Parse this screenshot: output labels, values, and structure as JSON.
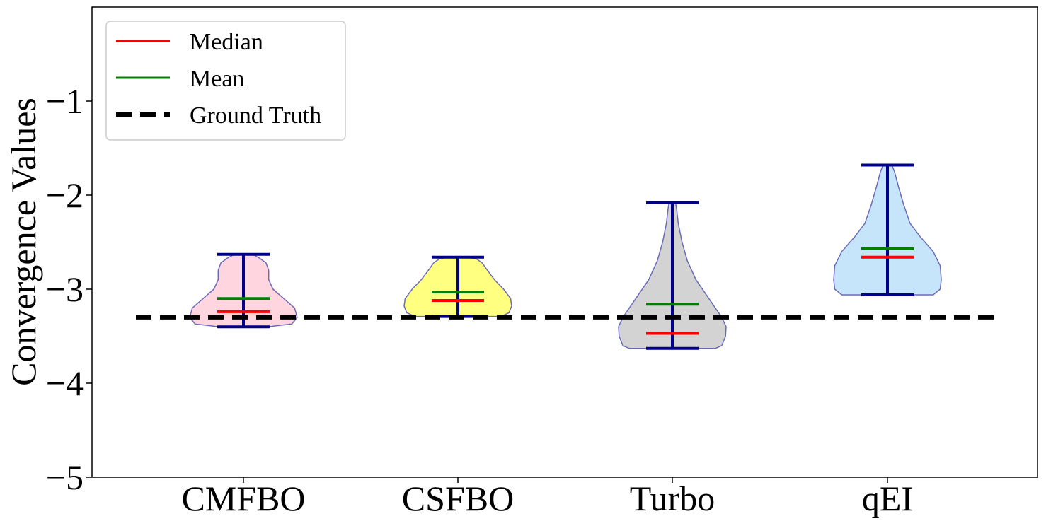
{
  "chart_data": {
    "type": "violin",
    "title": "",
    "xlabel": "",
    "ylabel": "Convergence Values",
    "ylim": [
      -5,
      0
    ],
    "yticks": [
      -1,
      -2,
      -3,
      -4,
      -5
    ],
    "ytick_labels": [
      "−1",
      "−2",
      "−3",
      "−4",
      "−5"
    ],
    "categories": [
      "CMFBO",
      "CSFBO",
      "Turbo",
      "qEI"
    ],
    "grid": false,
    "legend_position": "top-left",
    "ground_truth": -3.3,
    "series": [
      {
        "category": "CMFBO",
        "min": -3.4,
        "max": -2.63,
        "median": -3.24,
        "mean": -3.1,
        "fill": "#ffd6df",
        "profile": [
          [
            -3.4,
            0.45
          ],
          [
            -3.37,
            0.9
          ],
          [
            -3.3,
            1.0
          ],
          [
            -3.2,
            0.95
          ],
          [
            -3.1,
            0.75
          ],
          [
            -3.0,
            0.55
          ],
          [
            -2.9,
            0.47
          ],
          [
            -2.8,
            0.47
          ],
          [
            -2.72,
            0.42
          ],
          [
            -2.67,
            0.3
          ],
          [
            -2.63,
            0.17
          ]
        ]
      },
      {
        "category": "CSFBO",
        "min": -3.29,
        "max": -2.66,
        "median": -3.12,
        "mean": -3.03,
        "fill": "#ffff80",
        "profile": [
          [
            -3.29,
            0.8
          ],
          [
            -3.25,
            0.95
          ],
          [
            -3.18,
            1.0
          ],
          [
            -3.1,
            0.98
          ],
          [
            -3.0,
            0.85
          ],
          [
            -2.9,
            0.68
          ],
          [
            -2.8,
            0.55
          ],
          [
            -2.72,
            0.45
          ],
          [
            -2.68,
            0.35
          ],
          [
            -2.66,
            0.17
          ]
        ]
      },
      {
        "category": "Turbo",
        "min": -3.63,
        "max": -2.08,
        "median": -3.47,
        "mean": -3.16,
        "fill": "#d3d3d3",
        "profile": [
          [
            -3.63,
            0.8
          ],
          [
            -3.6,
            0.92
          ],
          [
            -3.5,
            0.99
          ],
          [
            -3.4,
            1.0
          ],
          [
            -3.3,
            0.92
          ],
          [
            -3.1,
            0.68
          ],
          [
            -2.9,
            0.44
          ],
          [
            -2.7,
            0.28
          ],
          [
            -2.5,
            0.18
          ],
          [
            -2.3,
            0.11
          ],
          [
            -2.15,
            0.08
          ],
          [
            -2.08,
            0.06
          ]
        ]
      },
      {
        "category": "qEI",
        "min": -3.06,
        "max": -1.68,
        "median": -2.66,
        "mean": -2.57,
        "fill": "#c6e4fa",
        "profile": [
          [
            -3.06,
            0.85
          ],
          [
            -3.0,
            0.98
          ],
          [
            -2.9,
            1.0
          ],
          [
            -2.75,
            0.98
          ],
          [
            -2.6,
            0.85
          ],
          [
            -2.45,
            0.62
          ],
          [
            -2.3,
            0.42
          ],
          [
            -2.1,
            0.3
          ],
          [
            -1.9,
            0.2
          ],
          [
            -1.75,
            0.13
          ],
          [
            -1.68,
            0.08
          ]
        ]
      }
    ],
    "legend": [
      {
        "label": "Median",
        "style": "solid",
        "color": "#ff0000"
      },
      {
        "label": "Mean",
        "style": "solid",
        "color": "#008000"
      },
      {
        "label": "Ground Truth",
        "style": "dashed",
        "color": "#000000"
      }
    ],
    "colors": {
      "median": "#ff0000",
      "mean": "#008000",
      "extrema": "#00008b",
      "ground_truth": "#000000",
      "violin_edge": "#6b6bb8"
    }
  }
}
